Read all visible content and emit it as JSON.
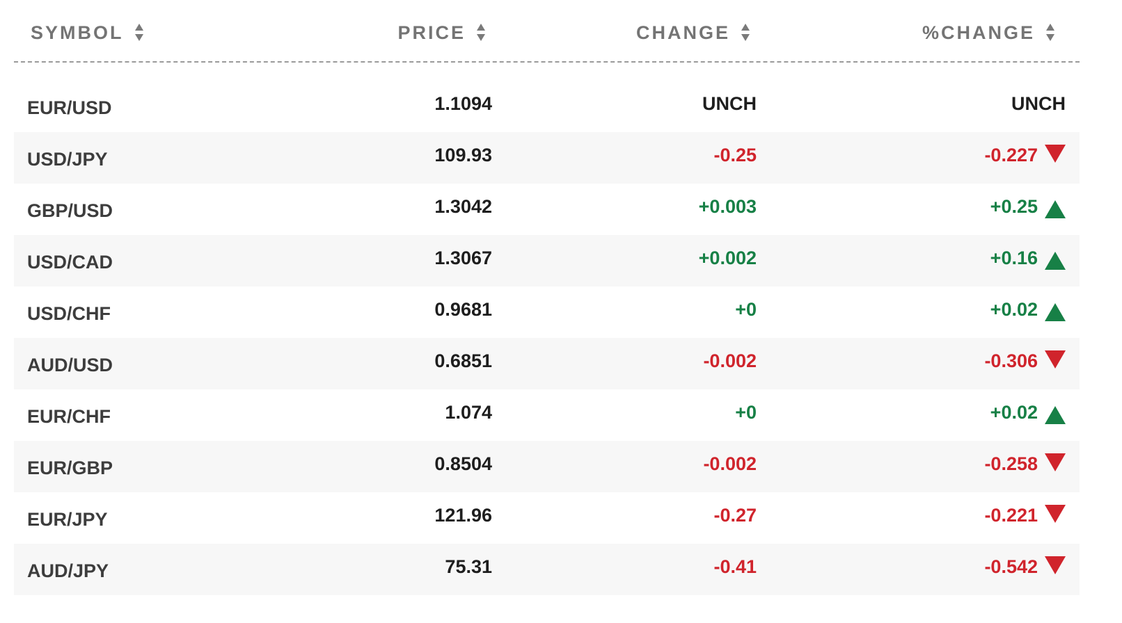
{
  "headers": {
    "symbol": "SYMBOL",
    "price": "PRICE",
    "change": "CHANGE",
    "pct_change": "%CHANGE"
  },
  "colors": {
    "negative": "#d0242c",
    "positive": "#178046",
    "header_text": "#747474",
    "row_alt_bg": "#f7f7f7"
  },
  "rows": [
    {
      "symbol": "EUR/USD",
      "price": "1.1094",
      "change": "UNCH",
      "pct_change": "UNCH",
      "direction": "unchanged"
    },
    {
      "symbol": "USD/JPY",
      "price": "109.93",
      "change": "-0.25",
      "pct_change": "-0.227",
      "direction": "down"
    },
    {
      "symbol": "GBP/USD",
      "price": "1.3042",
      "change": "+0.003",
      "pct_change": "+0.25",
      "direction": "up"
    },
    {
      "symbol": "USD/CAD",
      "price": "1.3067",
      "change": "+0.002",
      "pct_change": "+0.16",
      "direction": "up"
    },
    {
      "symbol": "USD/CHF",
      "price": "0.9681",
      "change": "+0",
      "pct_change": "+0.02",
      "direction": "up"
    },
    {
      "symbol": "AUD/USD",
      "price": "0.6851",
      "change": "-0.002",
      "pct_change": "-0.306",
      "direction": "down"
    },
    {
      "symbol": "EUR/CHF",
      "price": "1.074",
      "change": "+0",
      "pct_change": "+0.02",
      "direction": "up"
    },
    {
      "symbol": "EUR/GBP",
      "price": "0.8504",
      "change": "-0.002",
      "pct_change": "-0.258",
      "direction": "down"
    },
    {
      "symbol": "EUR/JPY",
      "price": "121.96",
      "change": "-0.27",
      "pct_change": "-0.221",
      "direction": "down"
    },
    {
      "symbol": "AUD/JPY",
      "price": "75.31",
      "change": "-0.41",
      "pct_change": "-0.542",
      "direction": "down"
    }
  ]
}
